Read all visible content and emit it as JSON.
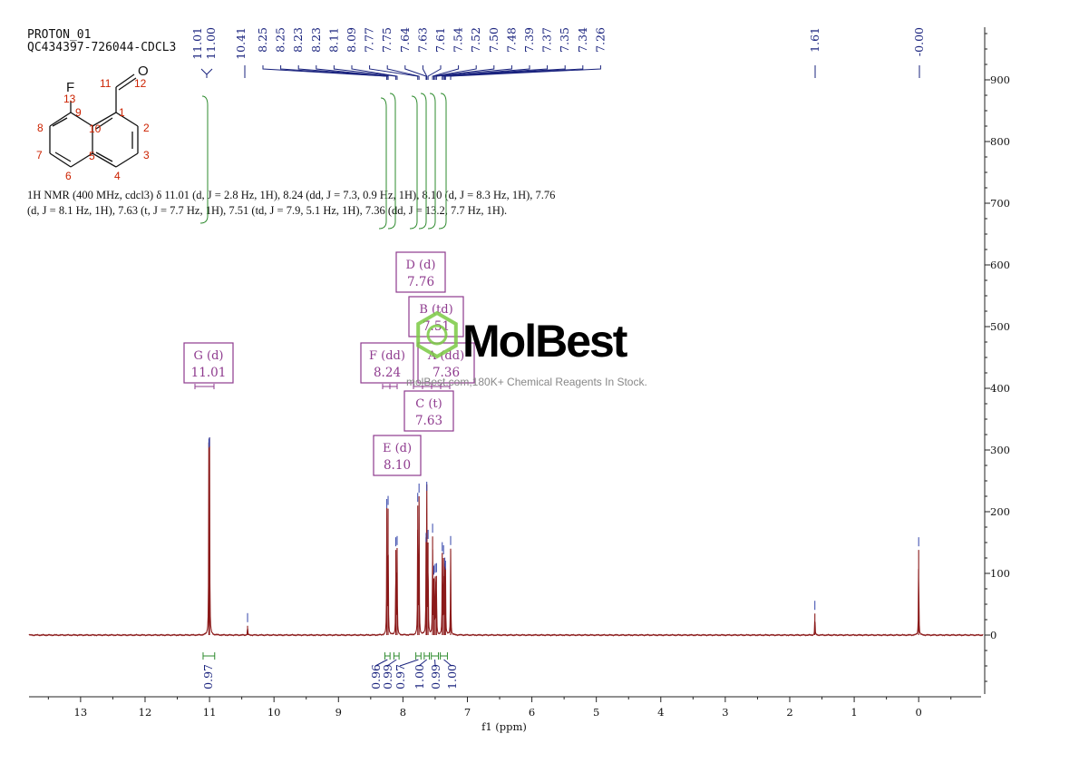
{
  "header": {
    "line1": "PROTON_01",
    "line2": "QC434397-726044-CDCL3"
  },
  "description": {
    "text": "1H NMR (400 MHz, cdcl3) δ 11.01 (d, J = 2.8 Hz, 1H), 8.24 (dd, J = 7.3, 0.9 Hz, 1H), 8.10 (d, J = 8.3 Hz, 1H), 7.76 (d, J = 8.1 Hz, 1H), 7.63 (t, J = 7.7 Hz, 1H), 7.51 (td, J = 7.9, 5.1 Hz, 1H), 7.36 (dd, J = 13.2, 7.7 Hz, 1H)."
  },
  "molecule": {
    "atoms": {
      "F": "F",
      "O": "O",
      "n1": "1",
      "n2": "2",
      "n3": "3",
      "n4": "4",
      "n5": "5",
      "n6": "6",
      "n7": "7",
      "n8": "8",
      "n9": "9",
      "n10": "10",
      "n11": "11",
      "n12": "12",
      "n13": "13"
    }
  },
  "watermark": {
    "brand": "MolBest",
    "tagline": "molBest.com,180K+ Chemical Reagents In Stock."
  },
  "colors": {
    "spectrum": "#8b1a1a",
    "peak_labels": "#1a237e",
    "integration": "#2e8b2e",
    "multiplet_box": "#8e3a8e",
    "atom_numbers": "#cc2200",
    "axis": "#222222"
  },
  "chart_data": {
    "type": "line",
    "xlabel": "f1 (ppm)",
    "xlim": [
      13.8,
      -1.0
    ],
    "ylim": [
      -90,
      980
    ],
    "x_ticks": [
      13,
      12,
      11,
      10,
      9,
      8,
      7,
      6,
      5,
      4,
      3,
      2,
      1,
      0
    ],
    "y_ticks": [
      900,
      800,
      700,
      600,
      500,
      400,
      300,
      200,
      100,
      0
    ],
    "peaks": [
      {
        "ppm": 11.01,
        "height": 298
      },
      {
        "ppm": 11.0,
        "height": 300
      },
      {
        "ppm": 10.41,
        "height": 15
      },
      {
        "ppm": 8.25,
        "height": 200
      },
      {
        "ppm": 8.23,
        "height": 205
      },
      {
        "ppm": 8.11,
        "height": 138
      },
      {
        "ppm": 8.09,
        "height": 140
      },
      {
        "ppm": 7.77,
        "height": 210
      },
      {
        "ppm": 7.75,
        "height": 225
      },
      {
        "ppm": 7.64,
        "height": 145
      },
      {
        "ppm": 7.63,
        "height": 228
      },
      {
        "ppm": 7.61,
        "height": 150
      },
      {
        "ppm": 7.54,
        "height": 160
      },
      {
        "ppm": 7.52,
        "height": 92
      },
      {
        "ppm": 7.5,
        "height": 95
      },
      {
        "ppm": 7.48,
        "height": 96
      },
      {
        "ppm": 7.39,
        "height": 130
      },
      {
        "ppm": 7.37,
        "height": 125
      },
      {
        "ppm": 7.35,
        "height": 105
      },
      {
        "ppm": 7.34,
        "height": 100
      },
      {
        "ppm": 7.26,
        "height": 140
      },
      {
        "ppm": 1.61,
        "height": 35
      },
      {
        "ppm": 0.0,
        "height": 138
      }
    ],
    "peak_labels": [
      "11.01",
      "11.00",
      "10.41",
      "8.25",
      "8.25",
      "8.23",
      "8.23",
      "8.11",
      "8.09",
      "7.77",
      "7.75",
      "7.64",
      "7.63",
      "7.61",
      "7.54",
      "7.52",
      "7.50",
      "7.48",
      "7.39",
      "7.37",
      "7.35",
      "7.34",
      "7.26"
    ],
    "isolated_peak_labels": [
      "1.61",
      "-0.00"
    ],
    "integrations": [
      {
        "ppm_from": 11.1,
        "ppm_to": 10.92,
        "value": "0.97",
        "label_ppm": 11.01
      },
      {
        "ppm_from": 8.28,
        "ppm_to": 8.2,
        "value": "0.96",
        "label_ppm": 8.37
      },
      {
        "ppm_from": 8.14,
        "ppm_to": 8.06,
        "value": "0.99",
        "label_ppm": 8.17
      },
      {
        "ppm_from": 7.8,
        "ppm_to": 7.72,
        "value": "0.97",
        "label_ppm": 7.97
      },
      {
        "ppm_from": 7.67,
        "ppm_to": 7.59,
        "value": "1.00",
        "label_ppm": 7.76
      },
      {
        "ppm_from": 7.56,
        "ppm_to": 7.45,
        "value": "0.99",
        "label_ppm": 7.56
      },
      {
        "ppm_from": 7.42,
        "ppm_to": 7.31,
        "value": "1.00",
        "label_ppm": 7.35
      }
    ],
    "multiplets": [
      {
        "name": "G (d)",
        "value": "11.01"
      },
      {
        "name": "F (dd)",
        "value": "8.24"
      },
      {
        "name": "E (d)",
        "value": "8.10"
      },
      {
        "name": "D (d)",
        "value": "7.76"
      },
      {
        "name": "C (t)",
        "value": "7.63"
      },
      {
        "name": "B (td)",
        "value": "7.51"
      },
      {
        "name": "A (dd)",
        "value": "7.36"
      }
    ]
  }
}
